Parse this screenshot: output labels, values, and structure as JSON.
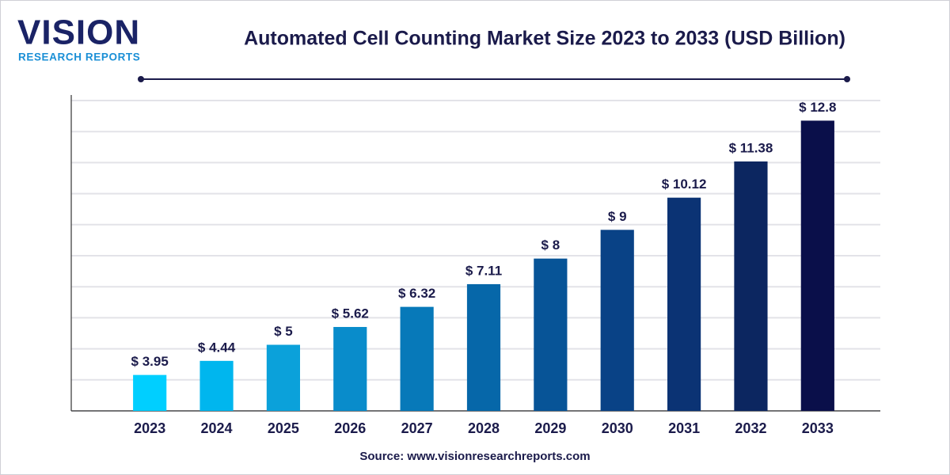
{
  "logo": {
    "name": "VISION",
    "tagline": "RESEARCH REPORTS"
  },
  "chart_data": {
    "type": "bar",
    "title": "Automated Cell Counting Market Size 2023 to 2033 (USD Billion)",
    "categories": [
      "2023",
      "2024",
      "2025",
      "2026",
      "2027",
      "2028",
      "2029",
      "2030",
      "2031",
      "2032",
      "2033"
    ],
    "values": [
      3.95,
      4.44,
      5,
      5.62,
      6.32,
      7.11,
      8,
      9,
      10.12,
      11.38,
      12.8
    ],
    "value_labels": [
      "$ 3.95",
      "$ 4.44",
      "$ 5",
      "$ 5.62",
      "$ 6.32",
      "$ 7.11",
      "$ 8",
      "$ 9",
      "$ 10.12",
      "$ 11.38",
      "$ 12.8"
    ],
    "colors": [
      "#00cfff",
      "#00b6ee",
      "#0ba1da",
      "#098ccb",
      "#0779b9",
      "#0667a9",
      "#075497",
      "#094286",
      "#0b3374",
      "#0c2660",
      "#0a0f4a"
    ],
    "ylim": [
      2.7,
      13.5
    ],
    "yticks": [
      2.7,
      3.78,
      4.86,
      5.94,
      7.02,
      8.1,
      9.18,
      10.26,
      11.34,
      12.42,
      13.5
    ],
    "grid": true,
    "source": "Source: www.visionresearchreports.com"
  }
}
